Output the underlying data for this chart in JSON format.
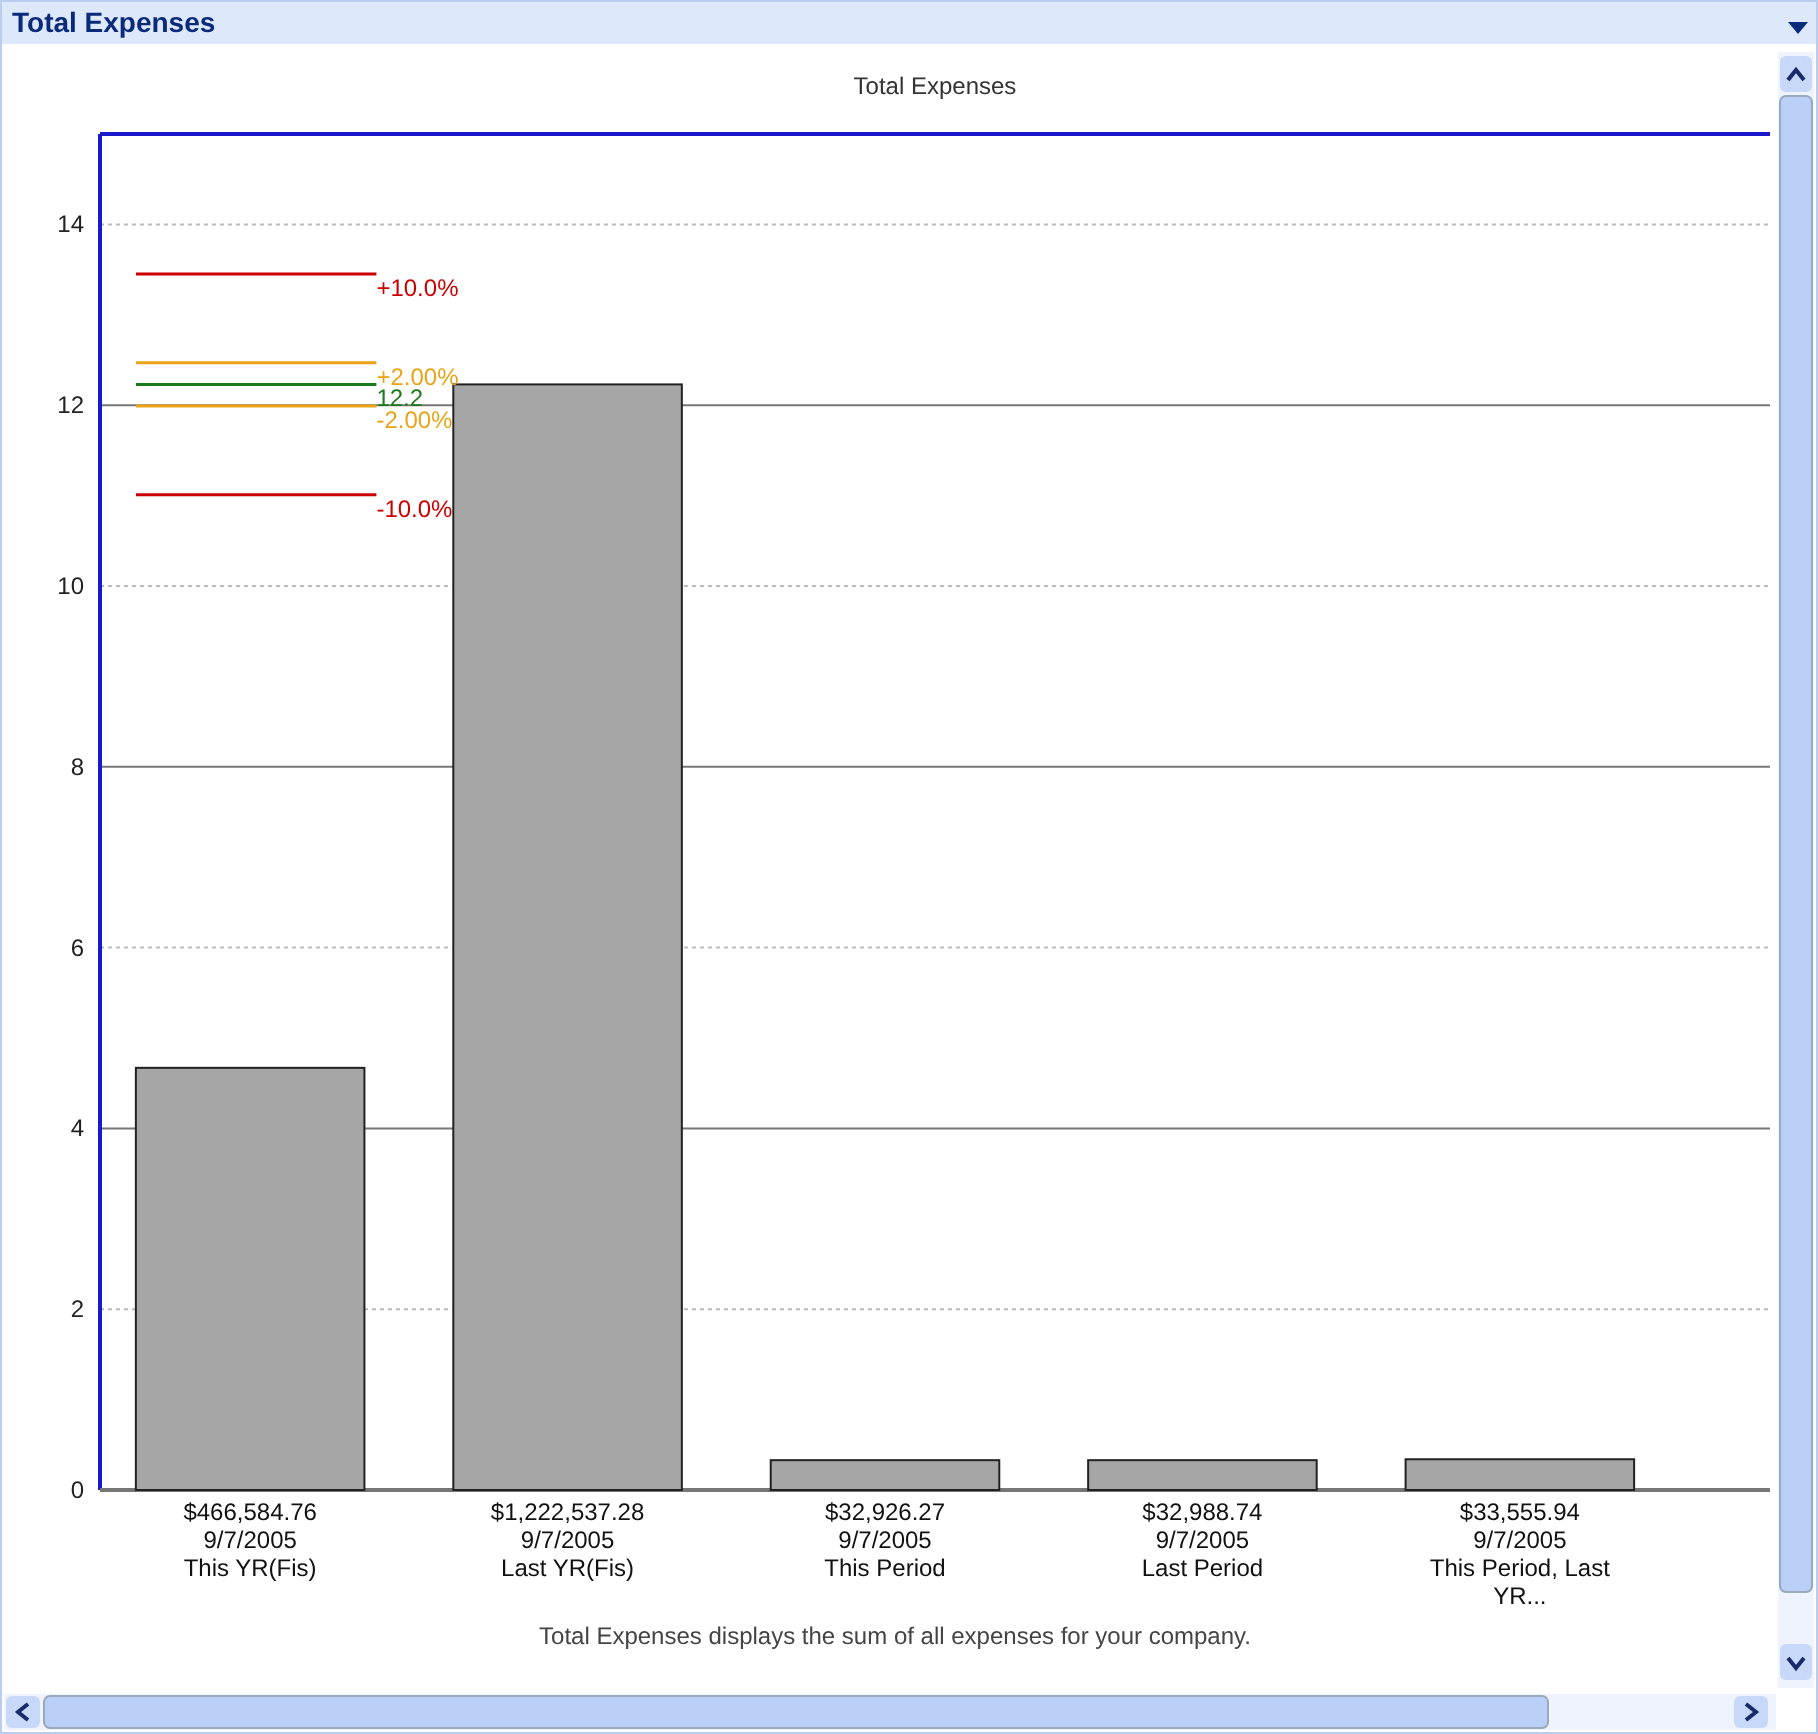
{
  "chart_data": {
    "type": "bar",
    "title": "Total Expenses",
    "subtitle": "Total Expenses",
    "categories": [
      "$466,584.76\n9/7/2005\nThis YR(Fis)",
      "$1,222,537.28\n9/7/2005\nLast YR(Fis)",
      "$32,926.27\n9/7/2005\nThis Period",
      "$32,988.74\n9/7/2005\nLast Period",
      "$33,555.94\n9/7/2005\nThis Period, Last\nYR..."
    ],
    "values": [
      4.67,
      12.23,
      0.33,
      0.33,
      0.34
    ],
    "color": "#a6a6a6",
    "ylim": [
      0,
      15
    ],
    "yticks": [
      0,
      2,
      4,
      6,
      8,
      10,
      12,
      14
    ],
    "grid": "y",
    "ref_lines": [
      {
        "axis": "y",
        "value": 13.45,
        "color": "#cc0000"
      },
      {
        "axis": "y",
        "value": 12.47,
        "color": "#e8a317"
      },
      {
        "axis": "y",
        "value": 12.23,
        "label": "12.2",
        "color": "#1a7a1a"
      },
      {
        "axis": "y",
        "value": 11.99,
        "color": "#e8a317"
      },
      {
        "axis": "y",
        "value": 11.01,
        "color": "#cc0000"
      }
    ],
    "annotations": [
      "Total Expenses displays the sum of all expenses for your company.",
      "+10.0%",
      "+2.00%",
      "-2.00%",
      "-10.0%"
    ]
  }
}
